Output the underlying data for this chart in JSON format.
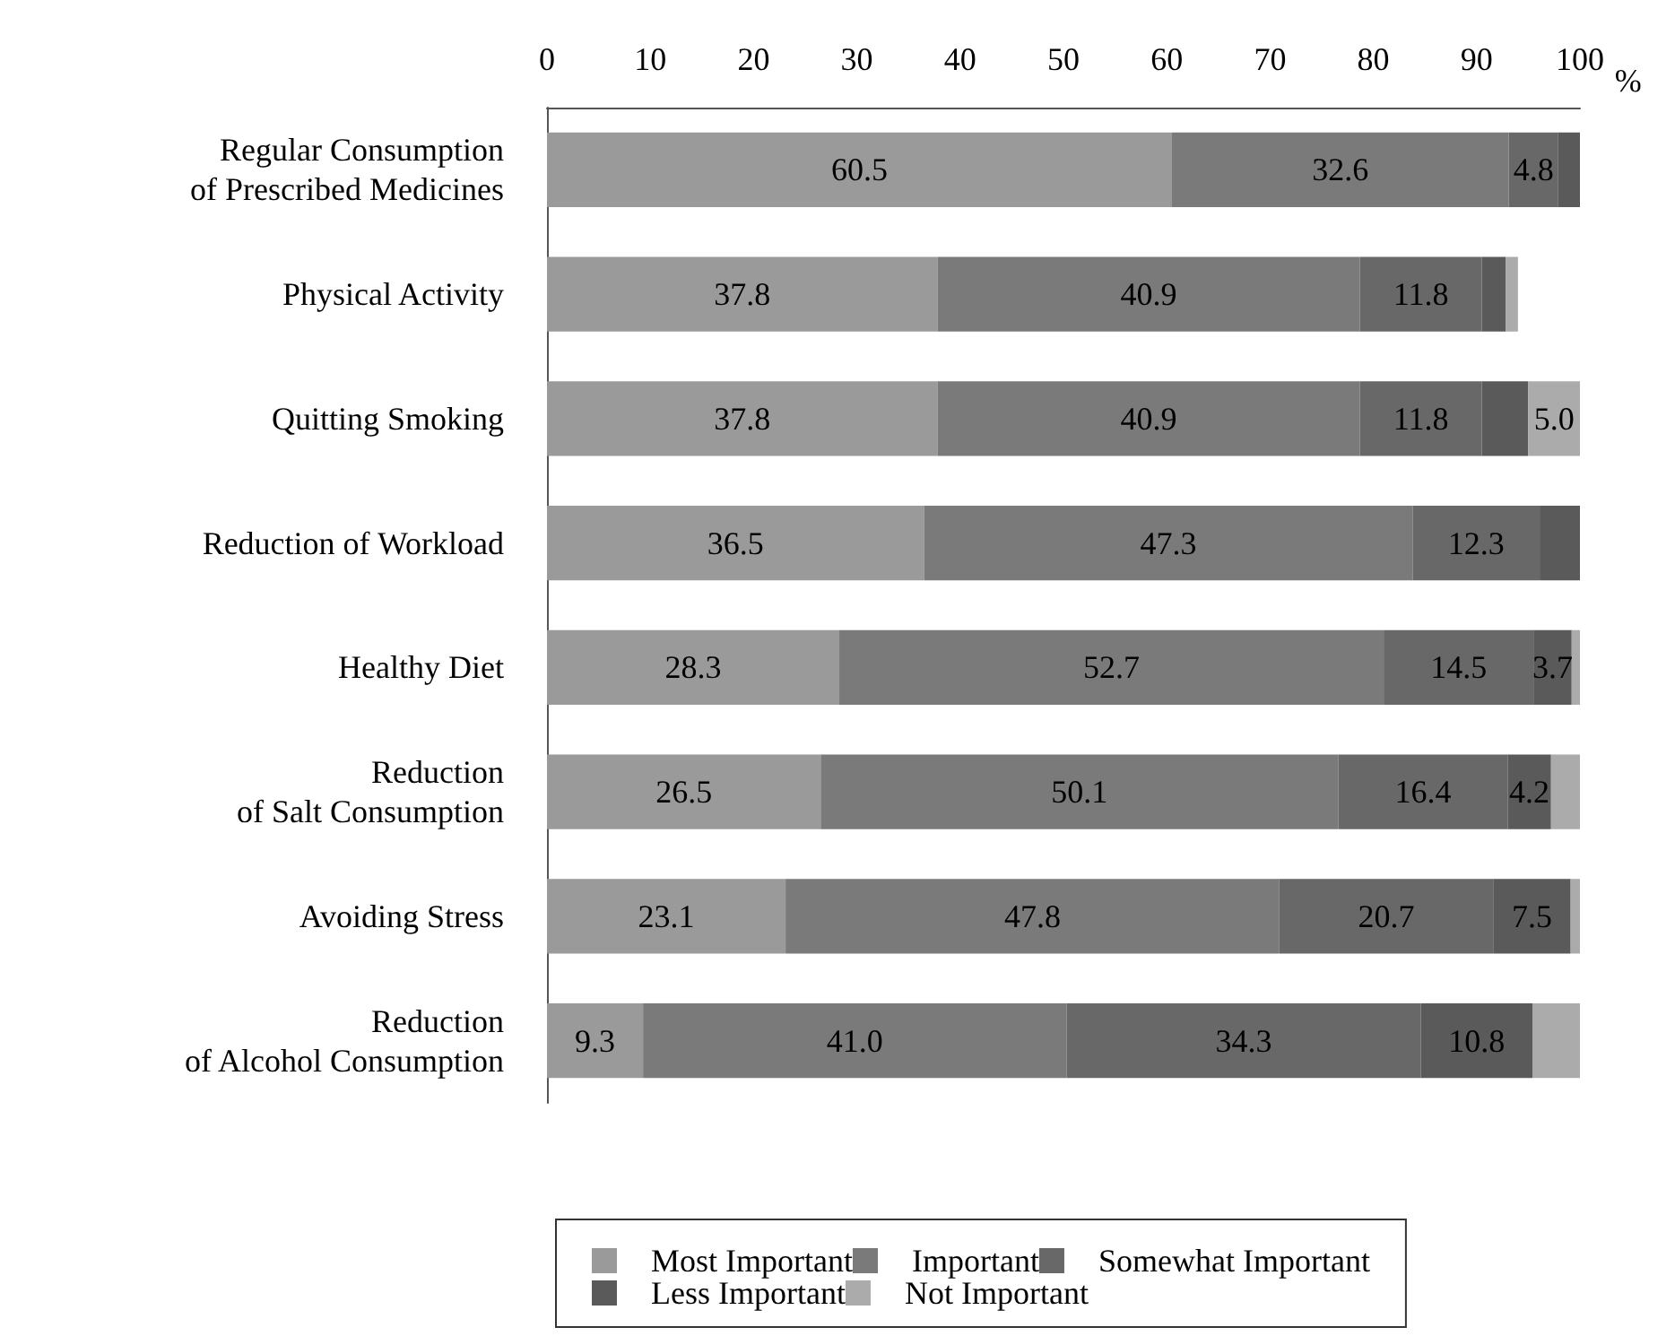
{
  "chart_data": {
    "type": "bar",
    "orientation": "horizontal",
    "stacked": true,
    "xlabel": "%",
    "categories": [
      "Regular Consumption\nof Prescribed Medicines",
      "Physical Activity",
      "Quitting Smoking",
      "Reduction of Workload",
      "Healthy Diet",
      "Reduction\nof Salt Consumption",
      "Avoiding Stress",
      "Reduction\nof Alcohol Consumption"
    ],
    "series": [
      {
        "name": "Most Important",
        "color": "#9a9a9a",
        "values": [
          60.5,
          37.8,
          37.8,
          36.5,
          28.3,
          26.5,
          23.1,
          9.3
        ],
        "value_labels": [
          "60.5",
          "37.8",
          "37.8",
          "36.5",
          "28.3",
          "26.5",
          "23.1",
          "9.3"
        ]
      },
      {
        "name": "Important",
        "color": "#7a7a7a",
        "values": [
          32.6,
          40.9,
          40.9,
          47.3,
          52.7,
          50.1,
          47.8,
          41.0
        ],
        "value_labels": [
          "32.6",
          "40.9",
          "40.9",
          "47.3",
          "52.7",
          "50.1",
          "47.8",
          "41.0"
        ]
      },
      {
        "name": "Somewhat Important",
        "color": "#686868",
        "values": [
          4.8,
          11.8,
          11.8,
          12.3,
          14.5,
          16.4,
          20.7,
          34.3
        ],
        "value_labels": [
          "4.8",
          "11.8",
          "11.8",
          "12.3",
          "14.5",
          "16.4",
          "20.7",
          "34.3"
        ]
      },
      {
        "name": "Less Important",
        "color": "#5a5a5a",
        "values": [
          2.1,
          2.3,
          4.5,
          3.9,
          3.7,
          4.2,
          7.5,
          10.8
        ],
        "value_labels": [
          null,
          null,
          null,
          null,
          "3.7",
          "4.2",
          "7.5",
          "10.8"
        ]
      },
      {
        "name": "Not Important",
        "color": "#ababab",
        "values": [
          null,
          1.2,
          5.0,
          null,
          0.8,
          2.8,
          0.9,
          4.6
        ],
        "value_labels": [
          null,
          null,
          "5.0",
          null,
          null,
          null,
          null,
          null
        ]
      }
    ],
    "xlim": [
      0,
      100
    ],
    "xticks": [
      0,
      10,
      20,
      30,
      40,
      50,
      60,
      70,
      80,
      90,
      100
    ],
    "grid": false,
    "legend": "bottom"
  }
}
